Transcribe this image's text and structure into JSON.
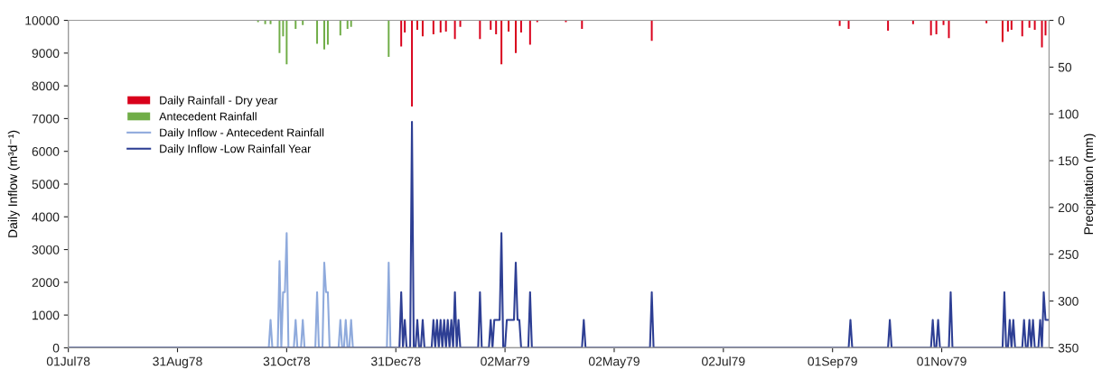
{
  "chart_data": {
    "type": "line",
    "ylabel": "Daily Inflow (m³d⁻¹)",
    "y2label": "Precipitation (mm)",
    "xlim": [
      "1978-07-01",
      "1979-12-31"
    ],
    "xticks": [
      {
        "value": "1978-07-01",
        "label": "01Jul78"
      },
      {
        "value": "1978-08-31",
        "label": "31Aug78"
      },
      {
        "value": "1978-10-31",
        "label": "31Oct78"
      },
      {
        "value": "1978-12-31",
        "label": "31Dec78"
      },
      {
        "value": "1979-03-02",
        "label": "02Mar79"
      },
      {
        "value": "1979-05-02",
        "label": "02May79"
      },
      {
        "value": "1979-07-02",
        "label": "02Jul79"
      },
      {
        "value": "1979-09-01",
        "label": "01Sep79"
      },
      {
        "value": "1979-11-01",
        "label": "01Nov79"
      }
    ],
    "ylim": [
      0,
      10000
    ],
    "yticks": [
      0,
      1000,
      2000,
      3000,
      4000,
      5000,
      6000,
      7000,
      8000,
      9000,
      10000
    ],
    "y2lim": [
      350,
      0
    ],
    "y2ticks": [
      0,
      50,
      100,
      150,
      200,
      250,
      300,
      350
    ],
    "grid": false,
    "legend": "top left",
    "line_style": "solid",
    "marker": "none",
    "series": [
      {
        "name": "Daily Rainfall - Dry year",
        "type": "bar",
        "axis": "y2",
        "color": "#d9001b",
        "x": [
          "1979-01-03",
          "1979-01-05",
          "1979-01-09",
          "1979-01-12",
          "1979-01-15",
          "1979-01-21",
          "1979-01-25",
          "1979-01-28",
          "1979-02-02",
          "1979-02-05",
          "1979-02-16",
          "1979-02-22",
          "1979-02-25",
          "1979-02-28",
          "1979-03-04",
          "1979-03-08",
          "1979-03-11",
          "1979-03-16",
          "1979-03-20",
          "1979-04-05",
          "1979-04-14",
          "1979-05-23",
          "1979-09-05",
          "1979-09-10",
          "1979-10-02",
          "1979-10-16",
          "1979-10-26",
          "1979-10-29",
          "1979-11-02",
          "1979-11-05",
          "1979-11-26",
          "1979-12-05",
          "1979-12-08",
          "1979-12-10",
          "1979-12-16",
          "1979-12-20",
          "1979-12-23",
          "1979-12-27",
          "1979-12-29"
        ],
        "values": [
          28,
          13,
          92,
          10,
          17,
          15,
          13,
          12,
          20,
          7,
          20,
          10,
          15,
          47,
          12,
          35,
          13,
          26,
          2,
          2,
          9,
          22,
          6,
          9,
          11,
          4,
          16,
          15,
          5,
          19,
          3,
          23,
          12,
          10,
          17,
          8,
          10,
          29,
          16
        ]
      },
      {
        "name": "Antecedent Rainfall",
        "type": "bar",
        "axis": "y2",
        "color": "#70ad47",
        "x": [
          "1978-10-15",
          "1978-10-19",
          "1978-10-22",
          "1978-10-27",
          "1978-10-29",
          "1978-10-31",
          "1978-11-05",
          "1978-11-09",
          "1978-11-17",
          "1978-11-21",
          "1978-11-23",
          "1978-11-30",
          "1978-12-04",
          "1978-12-06",
          "1978-12-27"
        ],
        "values": [
          2,
          4,
          4,
          35,
          17,
          47,
          9,
          5,
          25,
          31,
          26,
          16,
          9,
          7,
          39
        ]
      },
      {
        "name": "Daily Inflow - Antecedent Rainfall",
        "color": "#8faadc",
        "x": [
          "1978-07-01",
          "1978-10-21",
          "1978-10-22",
          "1978-10-23",
          "1978-10-26",
          "1978-10-27",
          "1978-10-28",
          "1978-10-29",
          "1978-10-30",
          "1978-10-31",
          "1978-11-01",
          "1978-11-04",
          "1978-11-05",
          "1978-11-06",
          "1978-11-08",
          "1978-11-09",
          "1978-11-10",
          "1978-11-16",
          "1978-11-17",
          "1978-11-18",
          "1978-11-20",
          "1978-11-21",
          "1978-11-22",
          "1978-11-23",
          "1978-11-24",
          "1978-11-29",
          "1978-11-30",
          "1978-12-01",
          "1978-12-02",
          "1978-12-03",
          "1978-12-04",
          "1978-12-05",
          "1978-12-06",
          "1978-12-07",
          "1978-12-26",
          "1978-12-27",
          "1978-12-28",
          "1978-12-31"
        ],
        "values": [
          0,
          0,
          850,
          0,
          0,
          2650,
          0,
          1700,
          1700,
          3500,
          0,
          0,
          850,
          0,
          0,
          850,
          0,
          0,
          1700,
          0,
          0,
          2600,
          1700,
          1700,
          0,
          0,
          850,
          0,
          0,
          850,
          0,
          0,
          850,
          0,
          0,
          2600,
          0,
          0
        ]
      },
      {
        "name": "Daily Inflow -Low Rainfall Year",
        "color": "#2e3f94",
        "x": [
          "1978-07-01",
          "1979-01-02",
          "1979-01-03",
          "1979-01-04",
          "1979-01-05",
          "1979-01-06",
          "1979-01-08",
          "1979-01-09",
          "1979-01-10",
          "1979-01-11",
          "1979-01-12",
          "1979-01-13",
          "1979-01-14",
          "1979-01-15",
          "1979-01-16",
          "1979-01-20",
          "1979-01-21",
          "1979-01-22",
          "1979-01-23",
          "1979-01-24",
          "1979-01-25",
          "1979-01-26",
          "1979-01-27",
          "1979-01-28",
          "1979-01-29",
          "1979-01-30",
          "1979-01-31",
          "1979-02-01",
          "1979-02-02",
          "1979-02-03",
          "1979-02-04",
          "1979-02-05",
          "1979-02-15",
          "1979-02-16",
          "1979-02-17",
          "1979-02-21",
          "1979-02-22",
          "1979-02-23",
          "1979-02-24",
          "1979-02-25",
          "1979-02-26",
          "1979-02-27",
          "1979-02-28",
          "1979-03-01",
          "1979-03-02",
          "1979-03-03",
          "1979-03-04",
          "1979-03-05",
          "1979-03-06",
          "1979-03-07",
          "1979-03-08",
          "1979-03-09",
          "1979-03-10",
          "1979-03-11",
          "1979-03-15",
          "1979-03-16",
          "1979-03-17",
          "1979-04-14",
          "1979-04-15",
          "1979-04-16",
          "1979-05-22",
          "1979-05-23",
          "1979-05-24",
          "1979-09-10",
          "1979-09-11",
          "1979-09-12",
          "1979-10-02",
          "1979-10-03",
          "1979-10-04",
          "1979-10-26",
          "1979-10-27",
          "1979-10-28",
          "1979-10-29",
          "1979-10-30",
          "1979-10-31",
          "1979-11-05",
          "1979-11-06",
          "1979-11-07",
          "1979-12-05",
          "1979-12-06",
          "1979-12-07",
          "1979-12-08",
          "1979-12-09",
          "1979-12-10",
          "1979-12-11",
          "1979-12-12",
          "1979-12-16",
          "1979-12-17",
          "1979-12-18",
          "1979-12-19",
          "1979-12-20",
          "1979-12-21",
          "1979-12-22",
          "1979-12-23",
          "1979-12-25",
          "1979-12-26",
          "1979-12-27",
          "1979-12-28",
          "1979-12-29",
          "1979-12-30",
          "1979-12-31"
        ],
        "values": [
          0,
          0,
          1700,
          0,
          850,
          0,
          0,
          6900,
          0,
          0,
          850,
          0,
          0,
          850,
          0,
          0,
          850,
          0,
          850,
          0,
          850,
          0,
          850,
          0,
          850,
          0,
          850,
          0,
          1700,
          0,
          850,
          0,
          0,
          1700,
          0,
          0,
          850,
          0,
          850,
          850,
          850,
          850,
          3500,
          0,
          0,
          850,
          850,
          850,
          850,
          850,
          2600,
          850,
          850,
          0,
          0,
          1700,
          0,
          0,
          850,
          0,
          0,
          1700,
          0,
          0,
          850,
          0,
          0,
          850,
          0,
          0,
          850,
          0,
          0,
          850,
          0,
          0,
          1700,
          0,
          0,
          1700,
          0,
          0,
          850,
          0,
          850,
          0,
          0,
          850,
          0,
          0,
          850,
          0,
          850,
          0,
          0,
          850,
          0,
          1700,
          850,
          850,
          850
        ]
      }
    ]
  }
}
